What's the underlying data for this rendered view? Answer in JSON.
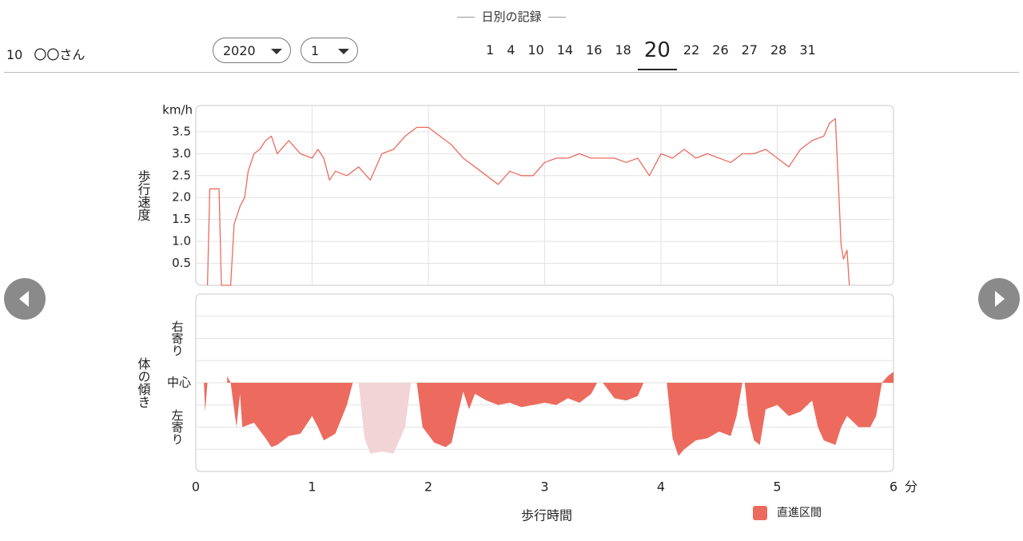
{
  "header": {
    "title": "日別の記録",
    "user_id": "10",
    "user_name": "〇〇さん",
    "year": "2020",
    "month": "1",
    "days": [
      "1",
      "4",
      "10",
      "14",
      "16",
      "18",
      "20",
      "22",
      "26",
      "27",
      "28",
      "31"
    ],
    "selected_day_index": 6
  },
  "chart_data": [
    {
      "type": "line",
      "ylabel": "歩行速度",
      "y_unit": "km/h",
      "xlim": [
        0,
        6
      ],
      "xticks": [
        1,
        2,
        3,
        4,
        5
      ],
      "ylim": [
        0,
        4.1
      ],
      "yticks": [
        0.5,
        {
          "value": 1,
          "label": "1.0"
        },
        1.5,
        {
          "value": 2,
          "label": "2.0"
        },
        2.5,
        {
          "value": 3,
          "label": "3.0"
        },
        3.5
      ],
      "grid": true,
      "series": [
        {
          "color": "#ec6b5e",
          "x": [
            0.1,
            0.12,
            0.15,
            0.2,
            0.22,
            0.3,
            0.33,
            0.38,
            0.42,
            0.45,
            0.5,
            0.55,
            0.6,
            0.65,
            0.7,
            0.8,
            0.9,
            1.0,
            1.05,
            1.1,
            1.15,
            1.2,
            1.3,
            1.4,
            1.5,
            1.6,
            1.7,
            1.8,
            1.9,
            2.0,
            2.1,
            2.2,
            2.3,
            2.4,
            2.5,
            2.6,
            2.7,
            2.8,
            2.9,
            3.0,
            3.1,
            3.2,
            3.3,
            3.4,
            3.5,
            3.6,
            3.7,
            3.8,
            3.9,
            4.0,
            4.1,
            4.2,
            4.3,
            4.4,
            4.5,
            4.6,
            4.7,
            4.8,
            4.9,
            5.0,
            5.1,
            5.2,
            5.3,
            5.4,
            5.45,
            5.5,
            5.55,
            5.57,
            5.6,
            5.62
          ],
          "values": [
            0,
            2.2,
            2.2,
            2.2,
            0,
            0,
            1.4,
            1.8,
            2.0,
            2.6,
            3.0,
            3.1,
            3.3,
            3.4,
            3.0,
            3.3,
            3.0,
            2.9,
            3.1,
            2.9,
            2.4,
            2.6,
            2.5,
            2.7,
            2.4,
            3.0,
            3.1,
            3.4,
            3.6,
            3.6,
            3.4,
            3.2,
            2.9,
            2.7,
            2.5,
            2.3,
            2.6,
            2.5,
            2.5,
            2.8,
            2.9,
            2.9,
            3.0,
            2.9,
            2.9,
            2.9,
            2.8,
            2.9,
            2.5,
            3.0,
            2.9,
            3.1,
            2.9,
            3.0,
            2.9,
            2.8,
            3.0,
            3.0,
            3.1,
            2.9,
            2.7,
            3.1,
            3.3,
            3.4,
            3.7,
            3.8,
            0.9,
            0.6,
            0.8,
            0
          ]
        }
      ]
    },
    {
      "type": "area",
      "ylabel": "体の傾き",
      "xlabel": "歩行時間",
      "x_unit": "分",
      "xlim": [
        0,
        6
      ],
      "xticks": [
        0,
        1,
        2,
        3,
        4,
        5,
        6
      ],
      "ylim": [
        -4,
        4
      ],
      "yticks": [
        {
          "value": 2,
          "label": "右寄り"
        },
        {
          "value": 0,
          "label": "中心"
        },
        {
          "value": -2,
          "label": "左寄り"
        }
      ],
      "ygrid": [
        -3,
        -2,
        -1,
        0,
        1,
        2,
        3
      ],
      "legend": "bottom-right",
      "series": [
        {
          "name": "直進区間",
          "color": "#ec6b5e",
          "x": [
            0.07,
            0.08,
            0.1,
            0.2,
            0.27,
            0.3,
            0.35,
            0.38,
            0.4,
            0.5,
            0.6,
            0.65,
            0.7,
            0.8,
            0.9,
            1.0,
            1.05,
            1.1,
            1.2,
            1.3,
            1.35,
            1.6,
            1.9,
            1.95,
            2.05,
            2.15,
            2.2,
            2.25,
            2.3,
            2.35,
            2.4,
            2.5,
            2.6,
            2.7,
            2.8,
            2.9,
            3.0,
            3.1,
            3.2,
            3.3,
            3.4,
            3.45,
            3.47,
            3.5,
            3.6,
            3.7,
            3.8,
            3.85,
            3.95,
            4.05,
            4.1,
            4.15,
            4.2,
            4.3,
            4.4,
            4.5,
            4.6,
            4.65,
            4.7,
            4.71,
            4.72,
            4.75,
            4.8,
            4.85,
            4.9,
            5.0,
            5.1,
            5.2,
            5.3,
            5.35,
            5.4,
            5.5,
            5.55,
            5.6,
            5.7,
            5.8,
            5.85,
            5.9,
            5.95,
            6.0
          ],
          "values": [
            0,
            -1.3,
            0,
            null,
            0.3,
            0,
            -2.0,
            -0.5,
            -2.0,
            -1.8,
            -2.5,
            -2.9,
            -2.8,
            -2.4,
            -2.3,
            -1.5,
            -2.0,
            -2.6,
            -2.3,
            -1.0,
            0,
            null,
            0,
            -2.0,
            -2.7,
            -2.9,
            -2.7,
            -1.5,
            -0.4,
            -1.2,
            -0.5,
            -0.8,
            -1.0,
            -0.9,
            -1.1,
            -1.0,
            -0.9,
            -1.0,
            -0.7,
            -0.9,
            -0.5,
            0,
            null,
            0,
            -0.7,
            -0.8,
            -0.6,
            0,
            null,
            0,
            -2.5,
            -3.3,
            -3.0,
            -2.6,
            -2.5,
            -2.2,
            -2.4,
            -1.5,
            0,
            null,
            0,
            -1.5,
            -2.6,
            -2.8,
            -1.2,
            -1.0,
            -1.5,
            -1.3,
            -0.8,
            -2.0,
            -2.6,
            -2.8,
            -2.0,
            -1.5,
            -2.0,
            -2.0,
            -1.5,
            0,
            0.3,
            0.5
          ]
        },
        {
          "color": "#f2d4d7",
          "x": [
            1.4,
            1.45,
            1.5,
            1.6,
            1.7,
            1.8,
            1.85
          ],
          "values": [
            0,
            -2.5,
            -3.2,
            -3.1,
            -3.2,
            -2.0,
            0
          ]
        }
      ]
    }
  ]
}
